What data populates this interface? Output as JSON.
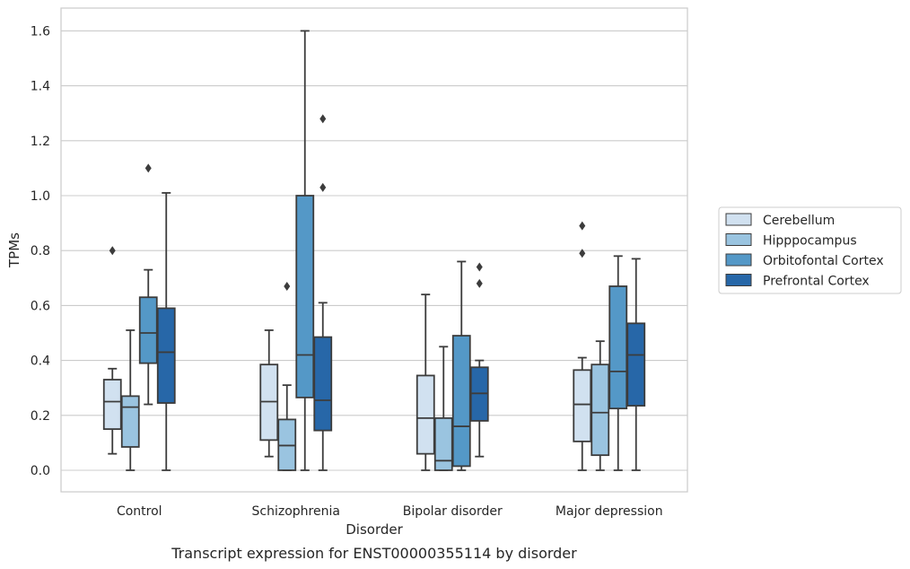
{
  "chart_data": {
    "type": "box",
    "caption": "Transcript expression for ENST00000355114 by disorder",
    "xlabel": "Disorder",
    "ylabel": "TPMs",
    "ylim": [
      -0.08,
      1.68
    ],
    "yticks": [
      "0.0",
      "0.2",
      "0.4",
      "0.6",
      "0.8",
      "1.0",
      "1.2",
      "1.4",
      "1.6"
    ],
    "grid": true,
    "legend_position": "right",
    "categories": [
      "Control",
      "Schizophrenia",
      "Bipolar disorder",
      "Major depression"
    ],
    "series": [
      {
        "name": "Cerebellum",
        "color": "#d1e1f0",
        "boxes": [
          {
            "whislo": 0.06,
            "q1": 0.15,
            "med": 0.25,
            "q3": 0.33,
            "whishi": 0.37,
            "fliers": [
              0.8
            ]
          },
          {
            "whislo": 0.05,
            "q1": 0.11,
            "med": 0.25,
            "q3": 0.385,
            "whishi": 0.51,
            "fliers": []
          },
          {
            "whislo": 0.0,
            "q1": 0.06,
            "med": 0.19,
            "q3": 0.345,
            "whishi": 0.64,
            "fliers": []
          },
          {
            "whislo": 0.0,
            "q1": 0.105,
            "med": 0.24,
            "q3": 0.365,
            "whishi": 0.41,
            "fliers": [
              0.79,
              0.89
            ]
          }
        ]
      },
      {
        "name": "Hipppocampus",
        "color": "#9ac4e0",
        "boxes": [
          {
            "whislo": 0.0,
            "q1": 0.085,
            "med": 0.23,
            "q3": 0.27,
            "whishi": 0.51,
            "fliers": []
          },
          {
            "whislo": 0.0,
            "q1": 0.0,
            "med": 0.09,
            "q3": 0.185,
            "whishi": 0.31,
            "fliers": [
              0.67
            ]
          },
          {
            "whislo": 0.0,
            "q1": 0.0,
            "med": 0.035,
            "q3": 0.19,
            "whishi": 0.45,
            "fliers": []
          },
          {
            "whislo": 0.0,
            "q1": 0.055,
            "med": 0.21,
            "q3": 0.385,
            "whishi": 0.47,
            "fliers": []
          }
        ]
      },
      {
        "name": "Orbitofontal Cortex",
        "color": "#5498c7",
        "boxes": [
          {
            "whislo": 0.24,
            "q1": 0.39,
            "med": 0.5,
            "q3": 0.63,
            "whishi": 0.73,
            "fliers": [
              1.1
            ]
          },
          {
            "whislo": 0.0,
            "q1": 0.265,
            "med": 0.42,
            "q3": 1.0,
            "whishi": 1.6,
            "fliers": []
          },
          {
            "whislo": 0.0,
            "q1": 0.015,
            "med": 0.16,
            "q3": 0.49,
            "whishi": 0.76,
            "fliers": []
          },
          {
            "whislo": 0.0,
            "q1": 0.225,
            "med": 0.36,
            "q3": 0.67,
            "whishi": 0.78,
            "fliers": []
          }
        ]
      },
      {
        "name": "Prefrontal Cortex",
        "color": "#2767a8",
        "boxes": [
          {
            "whislo": 0.0,
            "q1": 0.245,
            "med": 0.43,
            "q3": 0.59,
            "whishi": 1.01,
            "fliers": []
          },
          {
            "whislo": 0.0,
            "q1": 0.145,
            "med": 0.255,
            "q3": 0.485,
            "whishi": 0.61,
            "fliers": [
              1.03,
              1.28
            ]
          },
          {
            "whislo": 0.05,
            "q1": 0.18,
            "med": 0.28,
            "q3": 0.375,
            "whishi": 0.4,
            "fliers": [
              0.68,
              0.74
            ]
          },
          {
            "whislo": 0.0,
            "q1": 0.235,
            "med": 0.42,
            "q3": 0.535,
            "whishi": 0.77,
            "fliers": []
          }
        ]
      }
    ]
  }
}
